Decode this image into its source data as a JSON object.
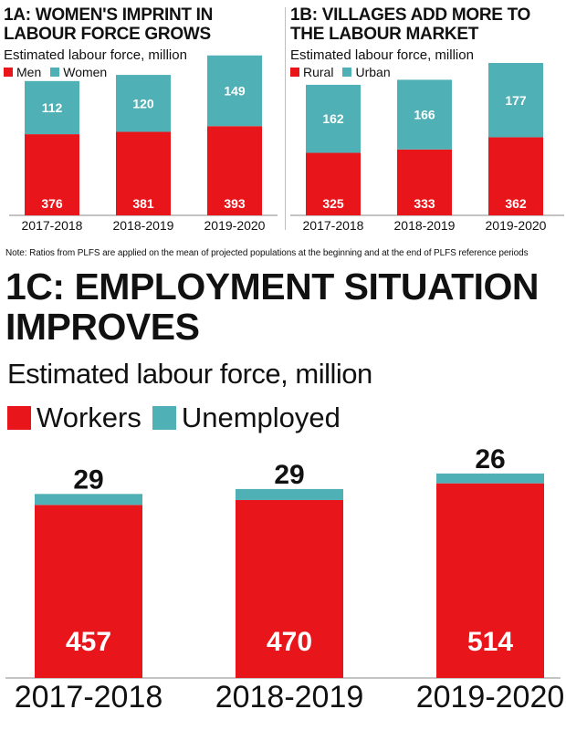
{
  "colors": {
    "primary": "#e8161b",
    "secondary": "#4fb0b5",
    "axis": "#888888",
    "text": "#111111"
  },
  "note": "Note: Ratios from PLFS are applied on the mean of projected populations at the beginning and at the end of PLFS reference periods",
  "chart_data": [
    {
      "id": "1a",
      "type": "bar",
      "stacked": true,
      "title": "1a: Women's imprint in labour force grows",
      "subtitle": "Estimated labour force, million",
      "categories": [
        "2017-2018",
        "2018-2019",
        "2019-2020"
      ],
      "series": [
        {
          "name": "Men",
          "values": [
            376,
            381,
            393
          ]
        },
        {
          "name": "Women",
          "values": [
            112,
            120,
            149
          ]
        }
      ],
      "legend": "top-left",
      "grid": false
    },
    {
      "id": "1b",
      "type": "bar",
      "stacked": true,
      "title": "1b: Villages add more to the labour market",
      "subtitle": "Estimated labour force, million",
      "categories": [
        "2017-2018",
        "2018-2019",
        "2019-2020"
      ],
      "series": [
        {
          "name": "Rural",
          "values": [
            325,
            333,
            362
          ]
        },
        {
          "name": "Urban",
          "values": [
            162,
            166,
            177
          ]
        }
      ],
      "legend": "top-left",
      "grid": false
    },
    {
      "id": "1c",
      "type": "bar",
      "stacked": true,
      "title": "1c: Employment situation improves",
      "subtitle": "Estimated labour force, million",
      "categories": [
        "2017-2018",
        "2018-2019",
        "2019-2020"
      ],
      "series": [
        {
          "name": "Workers",
          "values": [
            457,
            470,
            514
          ]
        },
        {
          "name": "Unemployed",
          "values": [
            29,
            29,
            26
          ]
        }
      ],
      "legend": "top-left",
      "grid": false
    }
  ]
}
